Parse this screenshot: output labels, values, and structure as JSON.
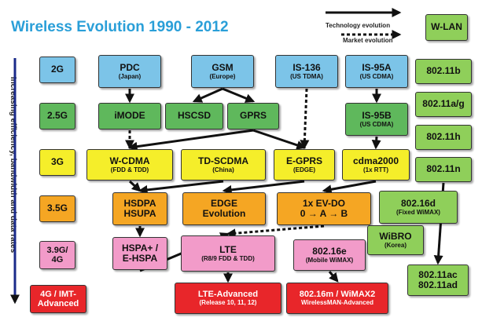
{
  "title": "Wireless Evolution 1990 - 2012",
  "legend": {
    "technology": "Technology evolution",
    "market": "Market evolution"
  },
  "axis_label": "Increasing efficiency, bandwidth and data rates",
  "generations": [
    {
      "id": "gen-2g",
      "lines": [
        "2G"
      ],
      "color": "#7cc4e8"
    },
    {
      "id": "gen-2-5g",
      "lines": [
        "2.5G"
      ],
      "color": "#5fb85c"
    },
    {
      "id": "gen-3g",
      "lines": [
        "3G"
      ],
      "color": "#f5ee2a"
    },
    {
      "id": "gen-3-5g",
      "lines": [
        "3.5G"
      ],
      "color": "#f5a623"
    },
    {
      "id": "gen-3-9g",
      "lines": [
        "3.9G/",
        "4G"
      ],
      "color": "#f29bc9"
    },
    {
      "id": "gen-4g",
      "lines": [
        "4G / IMT-",
        "Advanced"
      ],
      "color": "#e8262a"
    }
  ],
  "technologies": [
    {
      "id": "pdc",
      "main": "PDC",
      "sub": "(Japan)",
      "color": "#7cc4e8"
    },
    {
      "id": "gsm",
      "main": "GSM",
      "sub": "(Europe)",
      "color": "#7cc4e8"
    },
    {
      "id": "is-136",
      "main": "IS-136",
      "sub": "(US TDMA)",
      "color": "#7cc4e8"
    },
    {
      "id": "is-95a",
      "main": "IS-95A",
      "sub": "(US CDMA)",
      "color": "#7cc4e8"
    },
    {
      "id": "imode",
      "main": "iMODE",
      "sub": "",
      "color": "#5fb85c"
    },
    {
      "id": "hscsd",
      "main": "HSCSD",
      "sub": "",
      "color": "#5fb85c"
    },
    {
      "id": "gprs",
      "main": "GPRS",
      "sub": "",
      "color": "#5fb85c"
    },
    {
      "id": "is-95b",
      "main": "IS-95B",
      "sub": "(US CDMA)",
      "color": "#5fb85c"
    },
    {
      "id": "w-cdma",
      "main": "W-CDMA",
      "sub": "(FDD & TDD)",
      "color": "#f5ee2a"
    },
    {
      "id": "td-scdma",
      "main": "TD-SCDMA",
      "sub": "(China)",
      "color": "#f5ee2a"
    },
    {
      "id": "e-gprs",
      "main": "E-GPRS",
      "sub": "(EDGE)",
      "color": "#f5ee2a"
    },
    {
      "id": "cdma2000",
      "main": "cdma2000",
      "sub": "(1x RTT)",
      "color": "#f5ee2a"
    },
    {
      "id": "hsdpa",
      "main": "HSDPA",
      "main2": "HSUPA",
      "sub": "",
      "color": "#f5a623"
    },
    {
      "id": "edge-evolution",
      "main": "EDGE",
      "main2": "Evolution",
      "sub": "",
      "color": "#f5a623"
    },
    {
      "id": "ev-do",
      "main": "1x EV-DO",
      "main2": "0 → A → B",
      "sub": "",
      "color": "#f5a623"
    },
    {
      "id": "hspa-plus",
      "main": "HSPA+ /",
      "main2": "E-HSPA",
      "sub": "",
      "color": "#f29bc9"
    },
    {
      "id": "lte",
      "main": "LTE",
      "sub": "(R8/9 FDD & TDD)",
      "color": "#f29bc9"
    },
    {
      "id": "802-16e",
      "main": "802.16e",
      "sub": "(Mobile WiMAX)",
      "color": "#f29bc9"
    },
    {
      "id": "lte-advanced",
      "main": "LTE-Advanced",
      "sub": "(Release 10, 11, 12)",
      "color": "#e8262a"
    },
    {
      "id": "802-16m",
      "main": "802.16m / WiMAX2",
      "sub": "WirelessMAN-Advanced",
      "color": "#e8262a"
    },
    {
      "id": "w-lan",
      "main": "W-LAN",
      "sub": "",
      "color": "#8fcf5a"
    },
    {
      "id": "802-11b",
      "main": "802.11b",
      "sub": "",
      "color": "#8fcf5a"
    },
    {
      "id": "802-11ag",
      "main": "802.11a/g",
      "sub": "",
      "color": "#8fcf5a"
    },
    {
      "id": "802-11h",
      "main": "802.11h",
      "sub": "",
      "color": "#8fcf5a"
    },
    {
      "id": "802-11n",
      "main": "802.11n",
      "sub": "",
      "color": "#8fcf5a"
    },
    {
      "id": "802-16d",
      "main": "802.16d",
      "sub": "(Fixed WiMAX)",
      "color": "#8fcf5a"
    },
    {
      "id": "wibro",
      "main": "WiBRO",
      "sub": "(Korea)",
      "color": "#8fcf5a"
    },
    {
      "id": "802-11ac",
      "main": "802.11ac",
      "main2": "802.11ad",
      "sub": "",
      "color": "#8fcf5a"
    }
  ],
  "links": [
    {
      "from": "pdc",
      "to": "imode",
      "style": "solid"
    },
    {
      "from": "gsm",
      "to": "hscsd",
      "style": "solid"
    },
    {
      "from": "gsm",
      "to": "gprs",
      "style": "solid"
    },
    {
      "from": "is-136",
      "to": "e-gprs",
      "style": "dashed"
    },
    {
      "from": "is-95a",
      "to": "is-95b",
      "style": "solid"
    },
    {
      "from": "imode",
      "to": "w-cdma",
      "style": "dashed"
    },
    {
      "from": "gprs",
      "to": "w-cdma",
      "style": "solid"
    },
    {
      "from": "gprs",
      "to": "e-gprs",
      "style": "solid"
    },
    {
      "from": "is-95b",
      "to": "cdma2000",
      "style": "solid"
    },
    {
      "from": "w-cdma",
      "to": "hsdpa",
      "style": "solid"
    },
    {
      "from": "td-scdma",
      "to": "hsdpa",
      "style": "solid"
    },
    {
      "from": "e-gprs",
      "to": "edge-evolution",
      "style": "solid"
    },
    {
      "from": "cdma2000",
      "to": "ev-do",
      "style": "solid"
    },
    {
      "from": "hsdpa",
      "to": "hspa-plus",
      "style": "solid"
    },
    {
      "from": "ev-do",
      "to": "lte",
      "style": "dashed"
    },
    {
      "from": "hspa-plus",
      "to": "lte",
      "style": "solid"
    },
    {
      "from": "lte",
      "to": "lte-advanced",
      "style": "solid"
    },
    {
      "from": "802-16e",
      "to": "802-16m",
      "style": "solid"
    },
    {
      "from": "802-11n",
      "to": "802-11ac",
      "style": "solid"
    }
  ]
}
